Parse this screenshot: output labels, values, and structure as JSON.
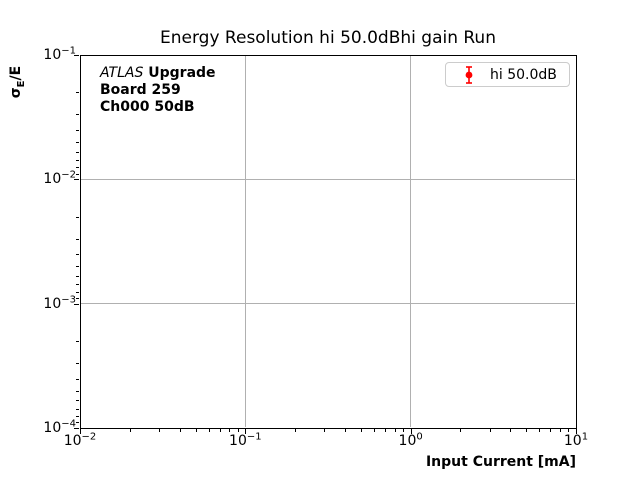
{
  "figure": {
    "title": "Energy Resolution hi 50.0dBhi gain Run"
  },
  "axes": {
    "xlabel": "Input Current [mA]",
    "ylabel_symbol": "σ",
    "ylabel_subscript": "E",
    "ylabel_suffix": "/E"
  },
  "annotation": {
    "line1_italic": "ATLAS",
    "line1_bold": "Upgrade",
    "line2": "Board 259",
    "line3": "Ch000 50dB"
  },
  "legend": {
    "entries": [
      {
        "label": "hi 50.0dB",
        "color": "#ff0000",
        "marker": "errorbar-circle"
      }
    ]
  },
  "colors": {
    "grid": "#b0b0b0",
    "spine": "#000000",
    "legend_border": "#cccccc",
    "series_red": "#ff0000",
    "background": "#ffffff"
  },
  "chart_data": {
    "type": "scatter",
    "title": "Energy Resolution hi 50.0dBhi gain Run",
    "xlabel": "Input Current [mA]",
    "ylabel": "σE/E",
    "xscale": "log",
    "yscale": "log",
    "xlim": [
      0.01,
      10
    ],
    "ylim": [
      0.0001,
      0.1
    ],
    "x_tick_exponents": [
      -2,
      -1,
      0,
      1
    ],
    "y_tick_exponents": [
      -1,
      -2,
      -3,
      -4
    ],
    "grid": true,
    "legend_position": "upper right",
    "series": [
      {
        "name": "hi 50.0dB",
        "color": "#ff0000",
        "marker": "circle-with-errorbar",
        "x": [],
        "y": []
      }
    ],
    "annotations": [
      "ATLAS Upgrade",
      "Board 259",
      "Ch000 50dB"
    ]
  }
}
